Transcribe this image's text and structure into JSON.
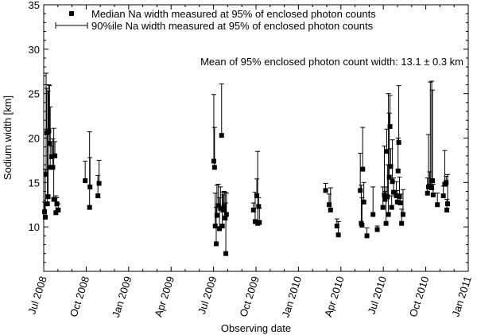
{
  "chart_data": {
    "type": "scatter",
    "title": "",
    "xlabel": "Observing date",
    "ylabel": "Sodium width [km]",
    "x_unit": "months since Jul 2008",
    "xlim": [
      0,
      30
    ],
    "ylim": [
      5,
      35
    ],
    "x_ticks": [
      {
        "value": 0,
        "label": "Jul 2008"
      },
      {
        "value": 3,
        "label": "Oct 2008"
      },
      {
        "value": 6,
        "label": "Jan 2009"
      },
      {
        "value": 9,
        "label": "Apr 2009"
      },
      {
        "value": 12,
        "label": "Jul 2009"
      },
      {
        "value": 15,
        "label": "Oct 2009"
      },
      {
        "value": 18,
        "label": "Jan 2010"
      },
      {
        "value": 21,
        "label": "Apr 2010"
      },
      {
        "value": 24,
        "label": "Jul 2010"
      },
      {
        "value": 27,
        "label": "Oct 2010"
      },
      {
        "value": 30,
        "label": "Jan 2011"
      }
    ],
    "y_ticks": [
      10,
      15,
      20,
      25,
      30,
      35
    ],
    "legend": [
      {
        "symbol": "square",
        "label": "Median Na width measured at 95% of enclosed photon counts"
      },
      {
        "symbol": "errorbar",
        "label": "90%ile Na width measured at 95% of enclosed photon counts"
      }
    ],
    "legend_position": "top-left",
    "annotation": "Mean of 95% enclosed photon count width: 13.1 ± 0.3 km",
    "series": [
      {
        "name": "Median Na width measured at 95% of enclosed photon counts",
        "points": [
          {
            "x": 0.06,
            "y": 11.7,
            "upper": 12.8
          },
          {
            "x": 0.11,
            "y": 11.1,
            "upper": 16.5
          },
          {
            "x": 0.17,
            "y": 15.9,
            "upper": 27.3
          },
          {
            "x": 0.22,
            "y": 20.6,
            "upper": 25.6
          },
          {
            "x": 0.26,
            "y": 12.6,
            "upper": 21.0
          },
          {
            "x": 0.31,
            "y": 13.4,
            "upper": 25.3
          },
          {
            "x": 0.36,
            "y": 20.8,
            "upper": 26.0
          },
          {
            "x": 0.41,
            "y": 19.4,
            "upper": 25.9
          },
          {
            "x": 0.46,
            "y": 16.7,
            "upper": 23.5
          },
          {
            "x": 0.56,
            "y": 17.9,
            "upper": 19.1
          },
          {
            "x": 0.64,
            "y": 16.7,
            "upper": 19.9
          },
          {
            "x": 0.71,
            "y": 13.1,
            "upper": 21.1
          },
          {
            "x": 0.79,
            "y": 18.0,
            "upper": 19.6
          },
          {
            "x": 0.86,
            "y": 11.6,
            "upper": 13.5
          },
          {
            "x": 0.93,
            "y": 12.6,
            "upper": 13.3
          },
          {
            "x": 1.03,
            "y": 11.9,
            "upper": 12.6
          },
          {
            "x": 2.93,
            "y": 15.2,
            "upper": 17.4
          },
          {
            "x": 3.24,
            "y": 12.2,
            "upper": 20.7
          },
          {
            "x": 3.27,
            "y": 14.5,
            "upper": 17.8
          },
          {
            "x": 3.83,
            "y": 13.5,
            "upper": 15.8
          },
          {
            "x": 3.91,
            "y": 14.9,
            "upper": 17.5
          },
          {
            "x": 12.02,
            "y": 17.4,
            "upper": 24.9
          },
          {
            "x": 12.07,
            "y": 16.7,
            "upper": 21.2
          },
          {
            "x": 12.12,
            "y": 10.1,
            "upper": 13.8
          },
          {
            "x": 12.19,
            "y": 8.1,
            "upper": 12.2
          },
          {
            "x": 12.24,
            "y": 11.3,
            "upper": 14.7
          },
          {
            "x": 12.34,
            "y": 12.4,
            "upper": 14.8
          },
          {
            "x": 12.42,
            "y": 9.8,
            "upper": 13.3
          },
          {
            "x": 12.49,
            "y": 12.1,
            "upper": 14.5
          },
          {
            "x": 12.57,
            "y": 20.3,
            "upper": 26.1
          },
          {
            "x": 12.62,
            "y": 10.1,
            "upper": 13.9
          },
          {
            "x": 12.67,
            "y": 11.9,
            "upper": 13.6
          },
          {
            "x": 12.74,
            "y": 12.3,
            "upper": 14.0
          },
          {
            "x": 12.82,
            "y": 11.0,
            "upper": 13.9
          },
          {
            "x": 12.87,
            "y": 7.0,
            "upper": 12.7
          },
          {
            "x": 12.91,
            "y": 11.4,
            "upper": 13.8
          },
          {
            "x": 14.82,
            "y": 11.9,
            "upper": 12.7
          },
          {
            "x": 14.94,
            "y": 10.6,
            "upper": 13.9
          },
          {
            "x": 15.06,
            "y": 13.5,
            "upper": 15.4
          },
          {
            "x": 15.12,
            "y": 10.4,
            "upper": 18.5
          },
          {
            "x": 15.19,
            "y": 12.3,
            "upper": 13.3
          },
          {
            "x": 15.24,
            "y": 10.5,
            "upper": 12.1
          },
          {
            "x": 19.92,
            "y": 14.1,
            "upper": 14.9
          },
          {
            "x": 20.17,
            "y": 12.5,
            "upper": 13.7
          },
          {
            "x": 20.27,
            "y": 11.9,
            "upper": 14.4
          },
          {
            "x": 20.72,
            "y": 10.1,
            "upper": 10.9
          },
          {
            "x": 20.82,
            "y": 9.1,
            "upper": 10.6
          },
          {
            "x": 22.37,
            "y": 14.1,
            "upper": 18.3
          },
          {
            "x": 22.44,
            "y": 10.4,
            "upper": 14.7
          },
          {
            "x": 22.49,
            "y": 10.2,
            "upper": 13.3
          },
          {
            "x": 22.54,
            "y": 16.5,
            "upper": 21.2
          },
          {
            "x": 22.62,
            "y": 12.8,
            "upper": 15.0
          },
          {
            "x": 22.84,
            "y": 9.0,
            "upper": 9.9
          },
          {
            "x": 23.27,
            "y": 11.4,
            "upper": 14.5
          },
          {
            "x": 23.57,
            "y": 9.7,
            "upper": 10.1
          },
          {
            "x": 23.97,
            "y": 12.2,
            "upper": 14.5
          },
          {
            "x": 24.07,
            "y": 13.6,
            "upper": 19.1
          },
          {
            "x": 24.12,
            "y": 13.1,
            "upper": 14.0
          },
          {
            "x": 24.19,
            "y": 10.4,
            "upper": 14.5
          },
          {
            "x": 24.24,
            "y": 18.5,
            "upper": 21.0
          },
          {
            "x": 24.29,
            "y": 13.4,
            "upper": 17.0
          },
          {
            "x": 24.36,
            "y": 11.4,
            "upper": 25.0
          },
          {
            "x": 24.42,
            "y": 15.6,
            "upper": 22.8
          },
          {
            "x": 24.47,
            "y": 21.3,
            "upper": 24.8
          },
          {
            "x": 24.52,
            "y": 16.8,
            "upper": 18.8
          },
          {
            "x": 24.59,
            "y": 12.2,
            "upper": 13.5
          },
          {
            "x": 24.64,
            "y": 15.1,
            "upper": 19.8
          },
          {
            "x": 24.72,
            "y": 13.9,
            "upper": 15.5
          },
          {
            "x": 24.92,
            "y": 13.5,
            "upper": 15.1
          },
          {
            "x": 24.99,
            "y": 12.8,
            "upper": 14.1
          },
          {
            "x": 25.04,
            "y": 16.3,
            "upper": 20.0
          },
          {
            "x": 25.09,
            "y": 19.5,
            "upper": 25.9
          },
          {
            "x": 25.14,
            "y": 13.4,
            "upper": 15.6
          },
          {
            "x": 25.19,
            "y": 12.7,
            "upper": 13.7
          },
          {
            "x": 25.29,
            "y": 10.4,
            "upper": 12.0
          },
          {
            "x": 25.39,
            "y": 11.4,
            "upper": 14.2
          },
          {
            "x": 27.12,
            "y": 13.8,
            "upper": 15.5
          },
          {
            "x": 27.19,
            "y": 14.5,
            "upper": 20.4
          },
          {
            "x": 27.27,
            "y": 14.6,
            "upper": 16.2
          },
          {
            "x": 27.32,
            "y": 14.5,
            "upper": 26.3
          },
          {
            "x": 27.42,
            "y": 14.4,
            "upper": 26.4
          },
          {
            "x": 27.47,
            "y": 15.2,
            "upper": 25.4
          },
          {
            "x": 27.52,
            "y": 13.6,
            "upper": 14.8
          },
          {
            "x": 27.82,
            "y": 12.5,
            "upper": 13.8
          },
          {
            "x": 28.24,
            "y": 13.5,
            "upper": 14.6
          },
          {
            "x": 28.34,
            "y": 14.8,
            "upper": 18.6
          },
          {
            "x": 28.44,
            "y": 15.0,
            "upper": 15.7
          },
          {
            "x": 28.49,
            "y": 11.9,
            "upper": 13.1
          },
          {
            "x": 28.54,
            "y": 12.6,
            "upper": 15.9
          }
        ]
      }
    ]
  }
}
